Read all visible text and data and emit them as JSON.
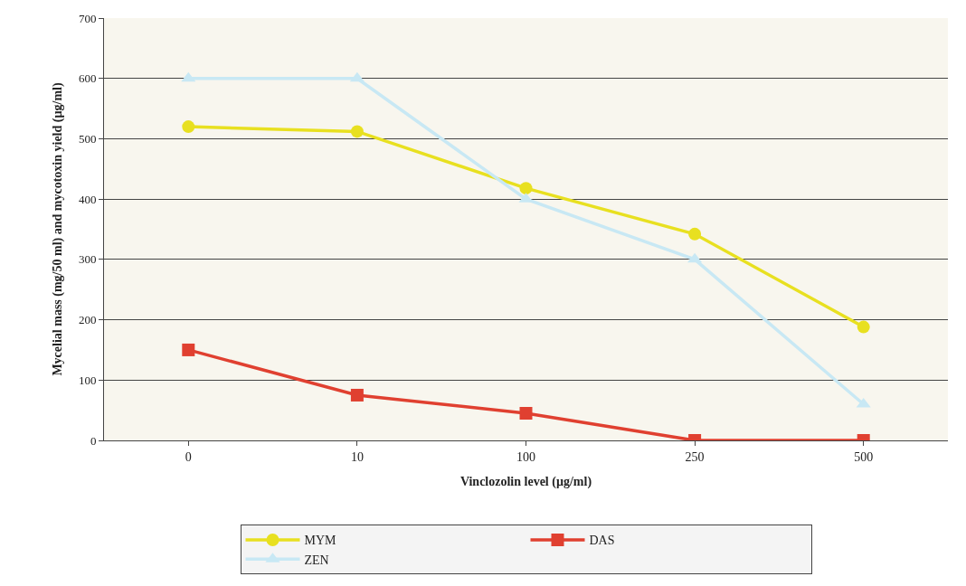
{
  "chart_data": {
    "type": "line",
    "xlabel": "Vinclozolin level (µg/ml)",
    "ylabel": "Mycelial mass (mg/50 ml) and mycotoxin yield (µg/ml)",
    "categories": [
      "0",
      "10",
      "100",
      "250",
      "500"
    ],
    "series": [
      {
        "name": "MYM",
        "color": "#e8e020",
        "marker": "circle",
        "values": [
          520,
          512,
          418,
          342,
          188
        ]
      },
      {
        "name": "DAS",
        "color": "#e04030",
        "marker": "square",
        "values": [
          150,
          75,
          45,
          0,
          0
        ]
      },
      {
        "name": "ZEN",
        "color": "#c8e8f4",
        "marker": "triangle",
        "values": [
          600,
          600,
          400,
          300,
          60
        ]
      }
    ],
    "ylim": [
      0,
      700
    ],
    "yticks": [
      0,
      100,
      200,
      300,
      400,
      500,
      600,
      700
    ],
    "grid": "y",
    "legend": "bottom",
    "line_style": "solid"
  }
}
